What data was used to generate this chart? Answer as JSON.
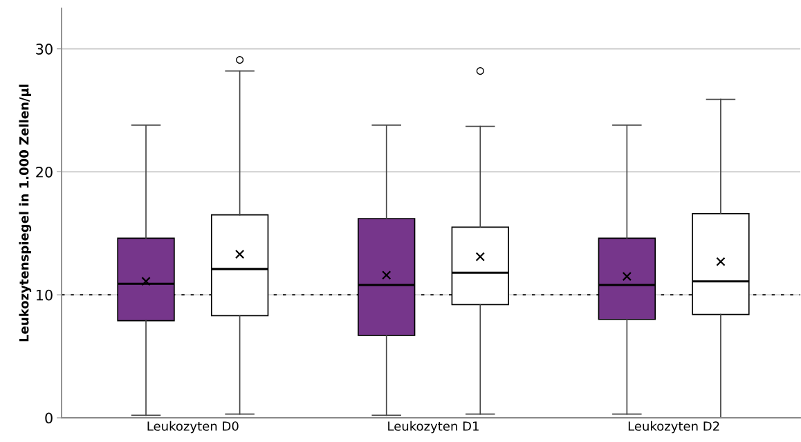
{
  "chart_data": {
    "type": "box",
    "ylabel": "Leukozytenspiegel in 1.000 Zellen/µl",
    "categories": [
      "Leukozyten D0",
      "Leukozyten D1",
      "Leukozyten D2"
    ],
    "series": [
      {
        "color": "#76368b",
        "boxes": [
          {
            "low": 0.2,
            "q1": 7.9,
            "median": 10.9,
            "q3": 14.6,
            "high": 23.8,
            "mean": 11.1
          },
          {
            "low": 0.2,
            "q1": 6.7,
            "median": 10.8,
            "q3": 16.2,
            "high": 23.8,
            "mean": 11.6
          },
          {
            "low": 0.3,
            "q1": 8.0,
            "median": 10.8,
            "q3": 14.6,
            "high": 23.8,
            "mean": 11.5
          }
        ]
      },
      {
        "color": "#ffffff",
        "boxes": [
          {
            "low": 0.3,
            "q1": 8.3,
            "median": 12.1,
            "q3": 16.5,
            "high": 28.2,
            "mean": 13.3,
            "outliers": [
              29.1
            ]
          },
          {
            "low": 0.3,
            "q1": 9.2,
            "median": 11.8,
            "q3": 15.5,
            "high": 23.7,
            "mean": 13.1,
            "outliers": [
              28.2
            ]
          },
          {
            "low": 0.0,
            "q1": 8.4,
            "median": 11.1,
            "q3": 16.6,
            "high": 25.9,
            "mean": 12.7
          }
        ]
      }
    ],
    "ylim": [
      0,
      33.3
    ],
    "yticks": [
      0,
      10,
      20,
      30
    ],
    "grid": "y",
    "ref_lines": [
      {
        "axis": "y",
        "value": 10,
        "line_style": "dotted",
        "color": "#333333"
      }
    ]
  }
}
